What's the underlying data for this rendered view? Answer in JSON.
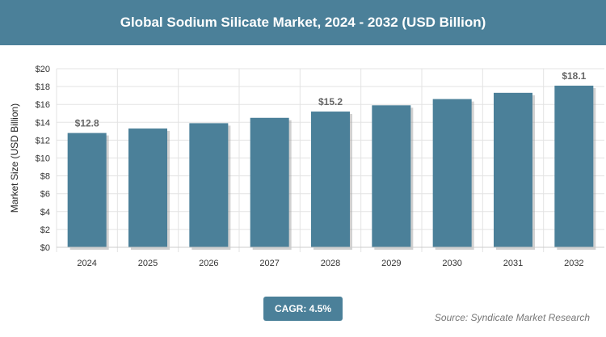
{
  "title": "Global Sodium Silicate Market, 2024 - 2032 (USD Billion)",
  "cagr": "CAGR: 4.5%",
  "source": "Source: Syndicate Market Research",
  "chart_data": {
    "type": "bar",
    "title": "Global Sodium Silicate Market, 2024 - 2032 (USD Billion)",
    "ylabel": "Market Size (USD Billion)",
    "xlabel": "",
    "categories": [
      "2024",
      "2025",
      "2026",
      "2027",
      "2028",
      "2029",
      "2030",
      "2031",
      "2032"
    ],
    "values": [
      12.8,
      13.3,
      13.9,
      14.5,
      15.2,
      15.9,
      16.6,
      17.3,
      18.1
    ],
    "data_labels": {
      "0": "$12.8",
      "4": "$15.2",
      "8": "$18.1"
    },
    "ylim": [
      0,
      20
    ],
    "yticks": [
      "$0",
      "$2",
      "$4",
      "$6",
      "$8",
      "$10",
      "$12",
      "$14",
      "$16",
      "$18",
      "$20"
    ],
    "grid": true,
    "bar_color": "#4b8099"
  }
}
